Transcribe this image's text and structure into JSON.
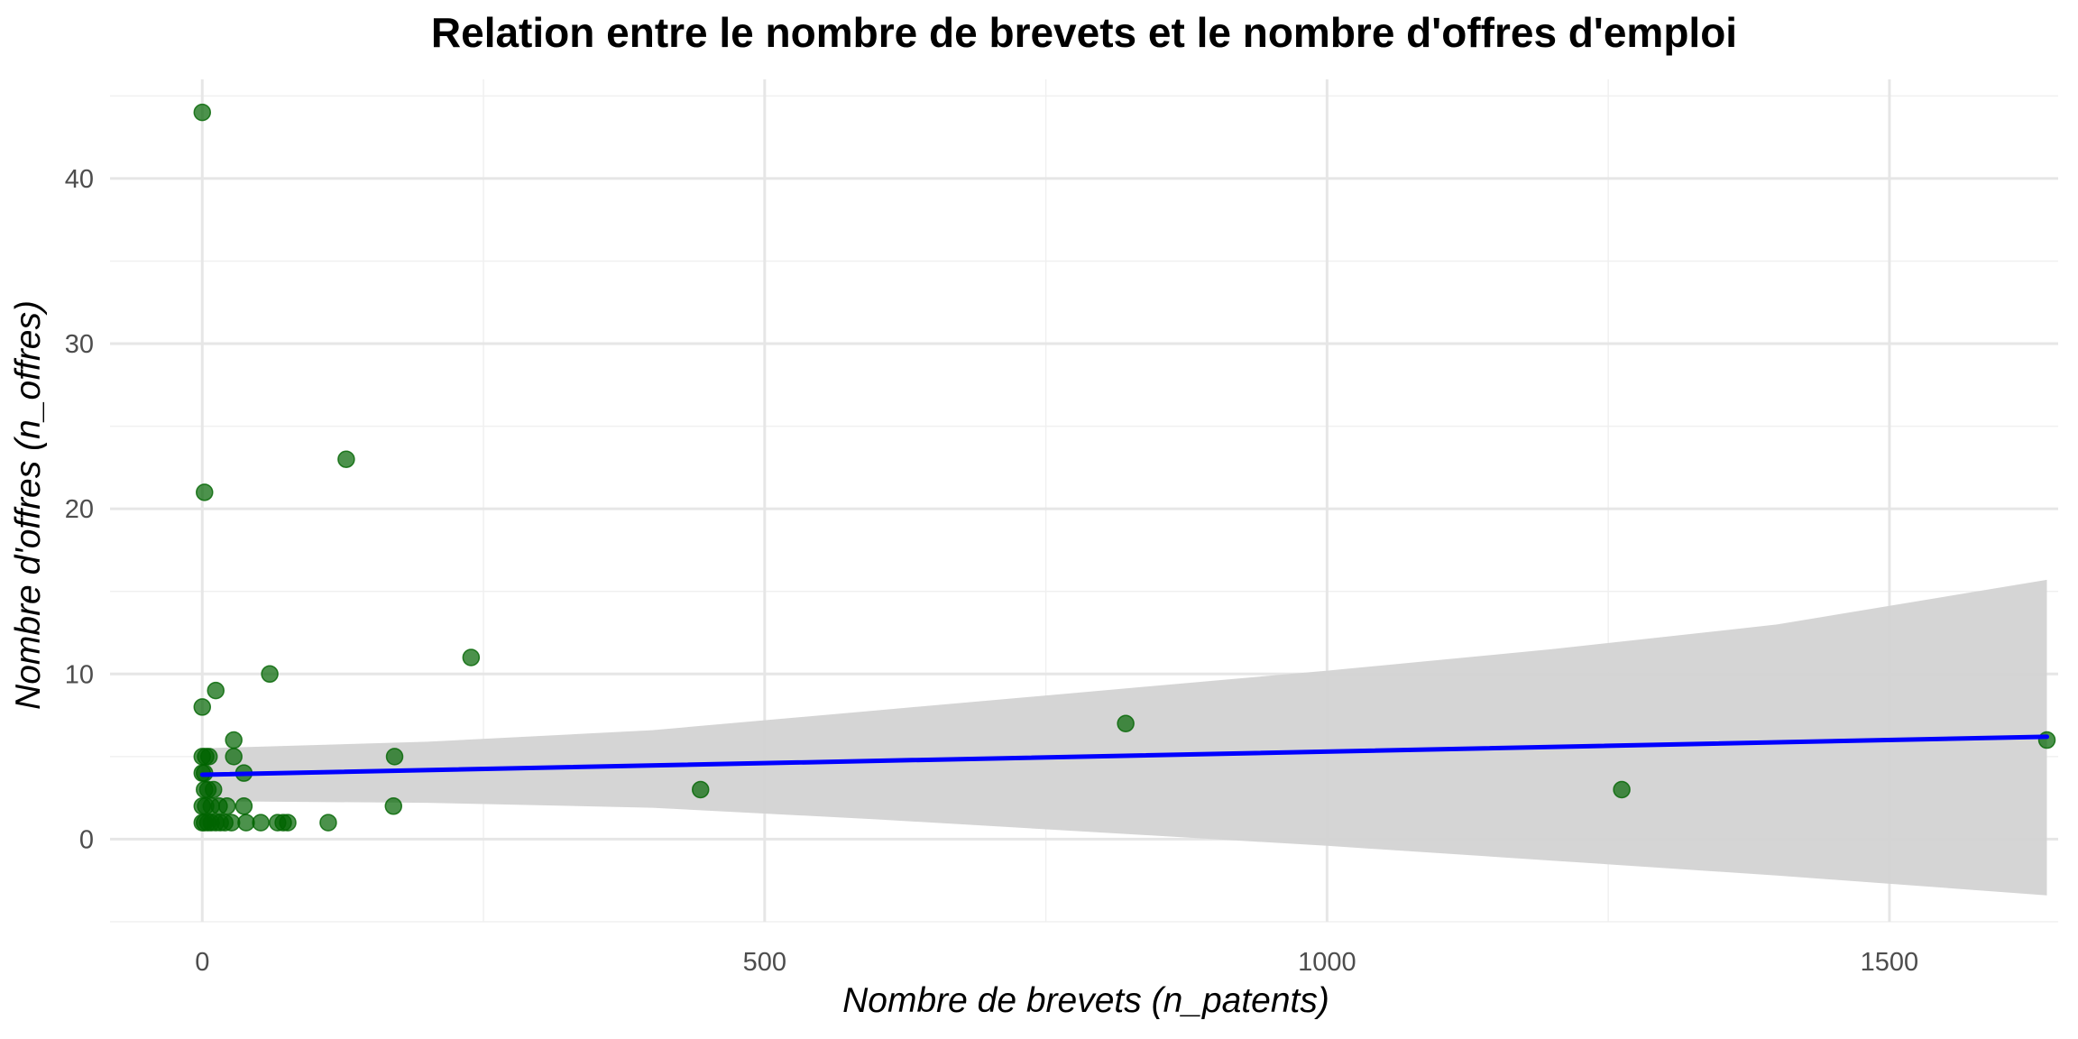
{
  "chart_data": {
    "type": "scatter",
    "title": "Relation entre le nombre de brevets et le nombre d'offres d'emploi",
    "xlabel": "Nombre de brevets (n_patents)",
    "ylabel": "Nombre d'offres (n_offres)",
    "xlim": [
      -82,
      1650
    ],
    "ylim": [
      -5,
      46
    ],
    "xticks": [
      0,
      500,
      1000,
      1500
    ],
    "xtick_labels": [
      "0",
      "500",
      "1000",
      "1500"
    ],
    "xminor": [
      250,
      750,
      1250
    ],
    "yticks": [
      0,
      10,
      20,
      30,
      40
    ],
    "ytick_labels": [
      "0",
      "10",
      "20",
      "30",
      "40"
    ],
    "yminor": [
      -5,
      5,
      15,
      25,
      35,
      45
    ],
    "grid": true,
    "point_color": "#006400",
    "line_color": "#0000ff",
    "ribbon_color": "#d3d3d3",
    "points": [
      {
        "x": 0,
        "y": 44
      },
      {
        "x": 2,
        "y": 21
      },
      {
        "x": 128,
        "y": 23
      },
      {
        "x": 239,
        "y": 11
      },
      {
        "x": 60,
        "y": 10
      },
      {
        "x": 12,
        "y": 9
      },
      {
        "x": 0,
        "y": 8
      },
      {
        "x": 28,
        "y": 6
      },
      {
        "x": 0,
        "y": 5
      },
      {
        "x": 3,
        "y": 5
      },
      {
        "x": 6,
        "y": 5
      },
      {
        "x": 28,
        "y": 5
      },
      {
        "x": 171,
        "y": 5
      },
      {
        "x": 0,
        "y": 4
      },
      {
        "x": 2,
        "y": 4
      },
      {
        "x": 37,
        "y": 4
      },
      {
        "x": 2,
        "y": 3
      },
      {
        "x": 5,
        "y": 3
      },
      {
        "x": 10,
        "y": 3
      },
      {
        "x": 443,
        "y": 3
      },
      {
        "x": 1262,
        "y": 3
      },
      {
        "x": 0,
        "y": 2
      },
      {
        "x": 3,
        "y": 2
      },
      {
        "x": 8,
        "y": 2
      },
      {
        "x": 15,
        "y": 2
      },
      {
        "x": 22,
        "y": 2
      },
      {
        "x": 37,
        "y": 2
      },
      {
        "x": 170,
        "y": 2
      },
      {
        "x": 0,
        "y": 1
      },
      {
        "x": 2,
        "y": 1
      },
      {
        "x": 5,
        "y": 1
      },
      {
        "x": 8,
        "y": 1
      },
      {
        "x": 12,
        "y": 1
      },
      {
        "x": 16,
        "y": 1
      },
      {
        "x": 20,
        "y": 1
      },
      {
        "x": 26,
        "y": 1
      },
      {
        "x": 39,
        "y": 1
      },
      {
        "x": 52,
        "y": 1
      },
      {
        "x": 67,
        "y": 1
      },
      {
        "x": 72,
        "y": 1
      },
      {
        "x": 76,
        "y": 1
      },
      {
        "x": 112,
        "y": 1
      },
      {
        "x": 821,
        "y": 7
      },
      {
        "x": 1640,
        "y": 6
      }
    ],
    "fit_line": {
      "x": [
        0,
        1640
      ],
      "y": [
        3.9,
        6.2
      ]
    },
    "ribbon": {
      "x": [
        0,
        200,
        400,
        600,
        800,
        1000,
        1200,
        1400,
        1640
      ],
      "lower": [
        2.3,
        2.2,
        1.9,
        1.2,
        0.4,
        -0.4,
        -1.3,
        -2.2,
        -3.4
      ],
      "upper": [
        5.5,
        5.9,
        6.6,
        7.8,
        9.0,
        10.2,
        11.5,
        13.0,
        15.7
      ]
    }
  }
}
